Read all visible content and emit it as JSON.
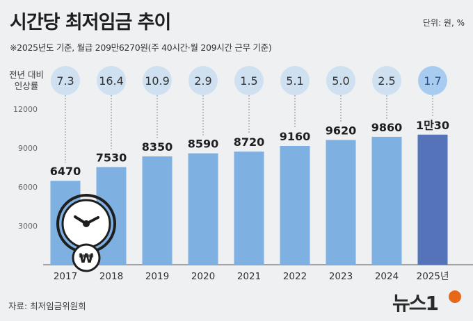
{
  "title": "시간당 최저임금 추이",
  "unit": "단위: 원, %",
  "subtitle": "※2025년도 기준, 월급 209만6270원(주 40시간·월 209시간 근무 기준)",
  "rate_label": "전년 대비 인상률",
  "source": "자료: 최저임금위원회",
  "logo_text": "뉴스1",
  "colors": {
    "bar": "#7fb0e2",
    "bar_highlight": "#5573b8",
    "circle": "#cfe0f1",
    "circle_highlight": "#a8ccf0",
    "logo_accent": "#e8681a"
  },
  "chart_data": {
    "type": "bar",
    "categories": [
      "2017",
      "2018",
      "2019",
      "2020",
      "2021",
      "2022",
      "2023",
      "2024",
      "2025년"
    ],
    "values": [
      6470,
      7530,
      8350,
      8590,
      8720,
      9160,
      9620,
      9860,
      10030
    ],
    "value_labels": [
      "6470",
      "7530",
      "8350",
      "8590",
      "8720",
      "9160",
      "9620",
      "9860",
      "1만30"
    ],
    "rate_labels": [
      "7.3",
      "16.4",
      "10.9",
      "2.9",
      "1.5",
      "5.1",
      "5.0",
      "2.5",
      "1.7"
    ],
    "yticks": [
      3000,
      6000,
      9000,
      12000
    ],
    "ylim": [
      0,
      12000
    ],
    "grid": false,
    "highlight_index": 8
  }
}
